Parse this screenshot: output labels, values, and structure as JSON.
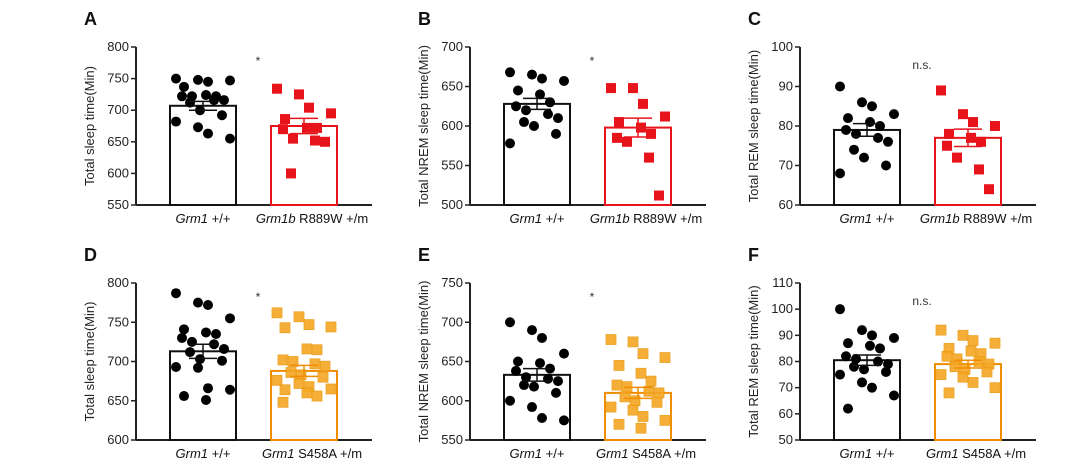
{
  "chart_data": [
    {
      "type": "bar",
      "panel": "A",
      "ylabel": "Total sleep time(Min)",
      "ylim": [
        550,
        800
      ],
      "yticks": [
        550,
        600,
        650,
        700,
        750,
        800
      ],
      "significance": "*",
      "categories": [
        {
          "italic": "Grm1",
          "rest": " +/+"
        },
        {
          "italic": "Grm1b",
          "rest": " R889W +/m"
        }
      ],
      "series": [
        {
          "name": "Grm1 +/+",
          "color": "#000000",
          "marker": "circle",
          "mean": 707,
          "sem": 7,
          "points": [
            750,
            748,
            745,
            747,
            737,
            724,
            722,
            722,
            722,
            716,
            716,
            712,
            700,
            692,
            682,
            673,
            663,
            655
          ]
        },
        {
          "name": "Grm1b R889W +/m",
          "color": "#e8141c",
          "marker": "square",
          "mean": 675,
          "sem": 12,
          "points": [
            734,
            725,
            704,
            695,
            686,
            672,
            672,
            670,
            655,
            652,
            650,
            600
          ]
        }
      ]
    },
    {
      "type": "bar",
      "panel": "B",
      "ylabel": "Total NREM sleep time(Min)",
      "ylim": [
        500,
        700
      ],
      "yticks": [
        500,
        550,
        600,
        650,
        700
      ],
      "significance": "*",
      "categories": [
        {
          "italic": "Grm1",
          "rest": " +/+"
        },
        {
          "italic": "Grm1b",
          "rest": " R889W +/m"
        }
      ],
      "series": [
        {
          "name": "Grm1 +/+",
          "color": "#000000",
          "marker": "circle",
          "mean": 628,
          "sem": 7,
          "points": [
            668,
            665,
            660,
            657,
            645,
            640,
            630,
            625,
            620,
            615,
            610,
            605,
            600,
            590,
            578
          ]
        },
        {
          "name": "Grm1b R889W +/m",
          "color": "#e8141c",
          "marker": "square",
          "mean": 598,
          "sem": 12,
          "points": [
            648,
            648,
            628,
            612,
            605,
            598,
            590,
            585,
            580,
            560,
            512
          ]
        }
      ]
    },
    {
      "type": "bar",
      "panel": "C",
      "ylabel": "Total REM sleep time(Min)",
      "ylim": [
        60,
        100
      ],
      "yticks": [
        60,
        70,
        80,
        90,
        100
      ],
      "significance": "n.s.",
      "categories": [
        {
          "italic": "Grm1",
          "rest": " +/+"
        },
        {
          "italic": "Grm1b",
          "rest": " R889W +/m"
        }
      ],
      "series": [
        {
          "name": "Grm1 +/+",
          "color": "#000000",
          "marker": "circle",
          "mean": 79,
          "sem": 1.6,
          "points": [
            90,
            86,
            85,
            83,
            82,
            81,
            80,
            79,
            78,
            77,
            76,
            74,
            72,
            70,
            68
          ]
        },
        {
          "name": "Grm1b R889W +/m",
          "color": "#e8141c",
          "marker": "square",
          "mean": 77,
          "sem": 2.2,
          "points": [
            89,
            83,
            81,
            80,
            78,
            77,
            76,
            75,
            72,
            69,
            64
          ]
        }
      ]
    },
    {
      "type": "bar",
      "panel": "D",
      "ylabel": "Total sleep time(Min)",
      "ylim": [
        600,
        800
      ],
      "yticks": [
        600,
        650,
        700,
        750,
        800
      ],
      "significance": "*",
      "categories": [
        {
          "italic": "Grm1",
          "rest": " +/+"
        },
        {
          "italic": "Grm1",
          "rest": " S458A +/m"
        }
      ],
      "series": [
        {
          "name": "Grm1 +/+",
          "color": "#000000",
          "marker": "circle",
          "mean": 713,
          "sem": 9,
          "points": [
            787,
            775,
            772,
            755,
            741,
            737,
            735,
            730,
            725,
            722,
            716,
            712,
            703,
            701,
            693,
            692,
            666,
            664,
            656,
            651
          ]
        },
        {
          "name": "Grm1 S458A +/m",
          "color": "#f5a623",
          "marker": "square",
          "mean": 688,
          "sem": 7,
          "points": [
            762,
            757,
            747,
            744,
            743,
            716,
            715,
            702,
            700,
            697,
            694,
            686,
            683,
            680,
            676,
            672,
            668,
            665,
            664,
            660,
            656,
            648
          ]
        }
      ]
    },
    {
      "type": "bar",
      "panel": "E",
      "ylabel": "Total NREM sleep time(Min)",
      "ylim": [
        550,
        750
      ],
      "yticks": [
        550,
        600,
        650,
        700,
        750
      ],
      "significance": "*",
      "categories": [
        {
          "italic": "Grm1",
          "rest": " +/+"
        },
        {
          "italic": "Grm1",
          "rest": " S458A +/m"
        }
      ],
      "series": [
        {
          "name": "Grm1 +/+",
          "color": "#000000",
          "marker": "circle",
          "mean": 633,
          "sem": 8,
          "points": [
            700,
            690,
            680,
            660,
            650,
            648,
            641,
            638,
            630,
            628,
            625,
            620,
            618,
            610,
            600,
            592,
            578,
            575
          ]
        },
        {
          "name": "Grm1 S458A +/m",
          "color": "#f5a623",
          "marker": "square",
          "mean": 610,
          "sem": 7,
          "points": [
            678,
            675,
            660,
            655,
            645,
            635,
            625,
            620,
            618,
            612,
            610,
            605,
            600,
            598,
            592,
            588,
            580,
            575,
            570,
            565
          ]
        }
      ]
    },
    {
      "type": "bar",
      "panel": "F",
      "ylabel": "Total REM sleep time(Min)",
      "ylim": [
        50,
        110
      ],
      "yticks": [
        50,
        60,
        70,
        80,
        90,
        100,
        110
      ],
      "significance": "n.s.",
      "categories": [
        {
          "italic": "Grm1",
          "rest": " +/+"
        },
        {
          "italic": "Grm1",
          "rest": " S458A +/m"
        }
      ],
      "series": [
        {
          "name": "Grm1 +/+",
          "color": "#000000",
          "marker": "circle",
          "mean": 80.5,
          "sem": 2,
          "points": [
            100,
            92,
            90,
            89,
            87,
            86,
            85,
            82,
            81,
            80,
            79,
            78,
            77,
            76,
            75,
            72,
            70,
            67,
            62
          ]
        },
        {
          "name": "Grm1 S458A +/m",
          "color": "#f5a623",
          "marker": "square",
          "mean": 79,
          "sem": 1.5,
          "points": [
            92,
            90,
            88,
            87,
            85,
            84,
            83,
            82,
            81,
            80,
            79,
            78,
            77,
            76,
            75,
            74,
            72,
            70,
            68
          ]
        }
      ]
    }
  ]
}
